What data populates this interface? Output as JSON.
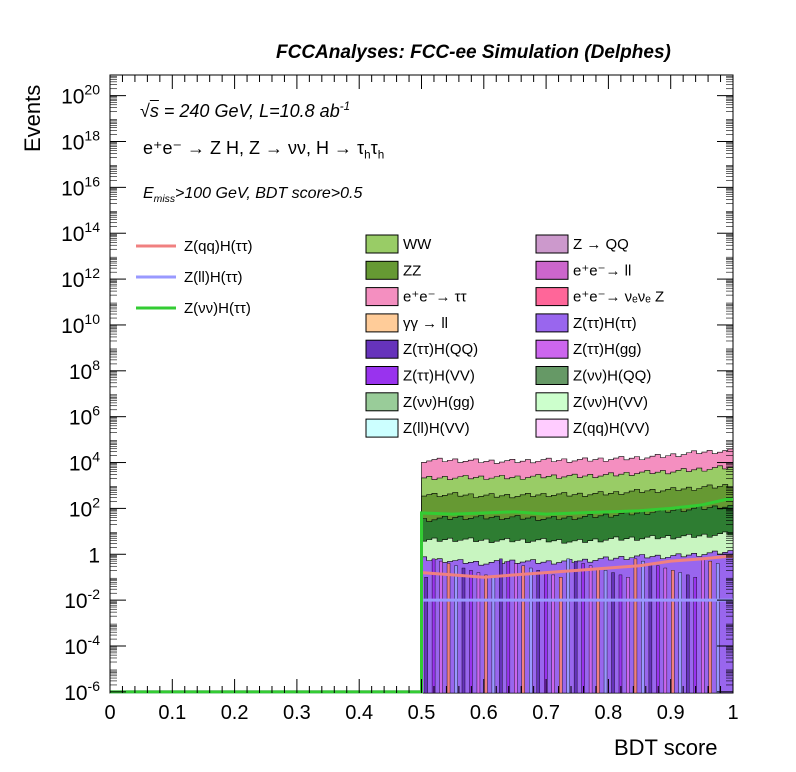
{
  "header": {
    "title": "FCCAnalyses: FCC-ee Simulation (Delphes)"
  },
  "annotations": {
    "energy_prefix": "s",
    "energy_rest": " = 240 GeV, L=10.8 ab",
    "energy_sup": "-1",
    "process": "e⁺e⁻ → Z H, Z → νν, H → τ",
    "process_sub1": "h",
    "process_mid": "τ",
    "process_sub2": "h",
    "cut_E": "E",
    "cut_sub": "miss",
    "cut_rest": ">100 GeV, BDT score>0.5"
  },
  "chart_data": {
    "type": "area",
    "title": "",
    "xlabel": "BDT score",
    "ylabel": "Events",
    "xlim": [
      0,
      1
    ],
    "ylim_exponent": [
      -6,
      21
    ],
    "log_y": true,
    "x_ticks": [
      "0",
      "0.1",
      "0.2",
      "0.3",
      "0.4",
      "0.5",
      "0.6",
      "0.7",
      "0.8",
      "0.9",
      "1"
    ],
    "y_ticks": [
      {
        "exp": -6,
        "label": "10",
        "sup": "-6"
      },
      {
        "exp": -4,
        "label": "10",
        "sup": "-4"
      },
      {
        "exp": -2,
        "label": "10",
        "sup": "-2"
      },
      {
        "exp": 0,
        "label": "1",
        "sup": ""
      },
      {
        "exp": 2,
        "label": "10",
        "sup": "2"
      },
      {
        "exp": 4,
        "label": "10",
        "sup": "4"
      },
      {
        "exp": 6,
        "label": "10",
        "sup": "6"
      },
      {
        "exp": 8,
        "label": "10",
        "sup": "8"
      },
      {
        "exp": 10,
        "label": "10",
        "sup": "10"
      },
      {
        "exp": 12,
        "label": "10",
        "sup": "12"
      },
      {
        "exp": 14,
        "label": "10",
        "sup": "14"
      },
      {
        "exp": 16,
        "label": "10",
        "sup": "16"
      },
      {
        "exp": 18,
        "label": "10",
        "sup": "18"
      },
      {
        "exp": 20,
        "label": "10",
        "sup": "20"
      }
    ],
    "stack_bands": [
      {
        "name": "e⁺e⁻→ ττ",
        "color": "#f48fc0",
        "x_start": 0.5,
        "top_log10": [
          4.1,
          4.1,
          4.05,
          4.05,
          4.1,
          4.1,
          4.15,
          4.2,
          4.3,
          4.45,
          4.5
        ]
      },
      {
        "name": "WW",
        "color": "#99cc66",
        "x_start": 0.5,
        "top_log10": [
          3.3,
          3.35,
          3.35,
          3.35,
          3.4,
          3.4,
          3.45,
          3.55,
          3.6,
          3.7,
          3.8
        ]
      },
      {
        "name": "ZZ",
        "color": "#669933",
        "x_start": 0.5,
        "top_log10": [
          2.6,
          2.6,
          2.55,
          2.55,
          2.6,
          2.6,
          2.65,
          2.75,
          2.8,
          2.9,
          3.0
        ]
      },
      {
        "name": "Z(νν)H(QQ)",
        "color": "#2e7d32",
        "x_start": 0.5,
        "top_log10": [
          1.5,
          1.6,
          1.6,
          1.6,
          1.55,
          1.6,
          1.7,
          1.8,
          1.9,
          2.0,
          2.1
        ]
      },
      {
        "name": "Z(νν)H(VV)",
        "color": "#c8f5c0",
        "x_start": 0.5,
        "top_log10": [
          0.6,
          0.65,
          0.6,
          0.6,
          0.6,
          0.55,
          0.65,
          0.7,
          0.75,
          0.8,
          0.9
        ]
      },
      {
        "name": "Z(ττ)H(ττ)",
        "color": "#9966ee",
        "x_start": 0.5,
        "top_log10": [
          -0.2,
          -0.3,
          -0.4,
          -0.3,
          -0.35,
          -0.3,
          -0.2,
          -0.1,
          -0.1,
          0.0,
          0.1
        ]
      }
    ],
    "signal_lines": [
      {
        "name": "Z(qq)H(ττ)",
        "color": "#f08080",
        "values_log10": [
          -0.8,
          -0.9,
          -1.0,
          -0.9,
          -0.8,
          -0.7,
          -0.6,
          -0.5,
          -0.3,
          -0.2,
          -0.1
        ]
      },
      {
        "name": "Z(ll)H(ττ)",
        "color": "#9999ff",
        "values_log10": [
          -2.0,
          -2.0,
          -2.0,
          -2.0,
          -2.0,
          -2.0,
          -2.0,
          -2.0,
          -2.0,
          -2.0,
          -2.0
        ]
      },
      {
        "name": "Z(νν)H(ττ)",
        "color": "#33cc33",
        "values_log10": [
          1.8,
          1.75,
          1.8,
          1.85,
          1.75,
          1.8,
          1.85,
          1.9,
          2.0,
          2.15,
          2.4
        ]
      }
    ],
    "signal_x": [
      0.5,
      0.55,
      0.6,
      0.65,
      0.7,
      0.75,
      0.8,
      0.85,
      0.9,
      0.95,
      0.99
    ],
    "legend_lines": [
      {
        "name": "Z(qq)H(ττ)",
        "color": "#f08080"
      },
      {
        "name": "Z(ll)H(ττ)",
        "color": "#9999ff"
      },
      {
        "name": "Z(νν)H(ττ)",
        "color": "#33cc33"
      }
    ],
    "legend_boxes": [
      {
        "name": "WW",
        "color": "#99cc66"
      },
      {
        "name": "Z → QQ",
        "color": "#cc99cc"
      },
      {
        "name": "ZZ",
        "color": "#669933"
      },
      {
        "name": "e⁺e⁻→ ll",
        "color": "#cc66cc"
      },
      {
        "name": "e⁺e⁻→ ττ",
        "color": "#f48fc0"
      },
      {
        "name": "e⁺e⁻→ νₑνₑ Z",
        "color": "#ff6699"
      },
      {
        "name": "γγ → ll",
        "color": "#ffcc99"
      },
      {
        "name": "Z(ττ)H(ττ)",
        "color": "#9966ee"
      },
      {
        "name": "Z(ττ)H(QQ)",
        "color": "#6633bb"
      },
      {
        "name": "Z(ττ)H(gg)",
        "color": "#cc66ee"
      },
      {
        "name": "Z(ττ)H(VV)",
        "color": "#9933ee"
      },
      {
        "name": "Z(νν)H(QQ)",
        "color": "#669966"
      },
      {
        "name": "Z(νν)H(gg)",
        "color": "#99cc99"
      },
      {
        "name": "Z(νν)H(VV)",
        "color": "#ccffcc"
      },
      {
        "name": "Z(ll)H(VV)",
        "color": "#ccffff"
      },
      {
        "name": "Z(qq)H(VV)",
        "color": "#ffccff"
      }
    ]
  }
}
